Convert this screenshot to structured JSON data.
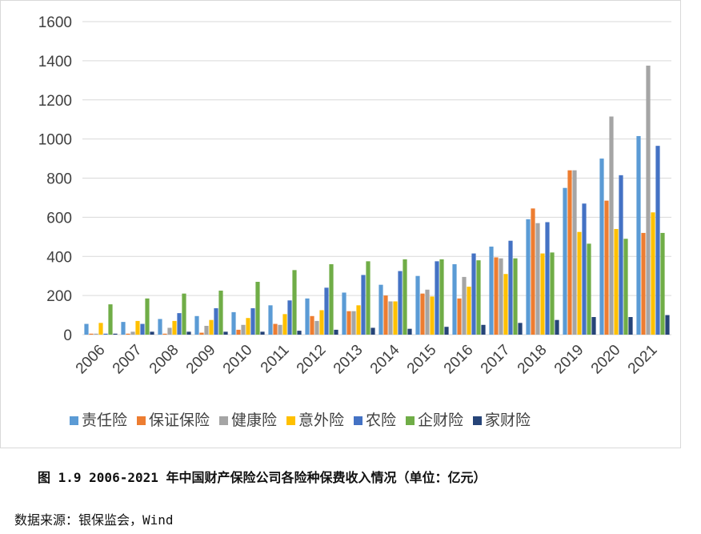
{
  "chart_data": {
    "type": "bar",
    "categories": [
      "2006",
      "2007",
      "2008",
      "2009",
      "2010",
      "2011",
      "2012",
      "2013",
      "2014",
      "2015",
      "2016",
      "2017",
      "2018",
      "2019",
      "2020",
      "2021"
    ],
    "yticks": [
      0,
      200,
      400,
      600,
      800,
      1000,
      1200,
      1400,
      1600
    ],
    "ylim": [
      0,
      1600
    ],
    "grid": true,
    "legend_position": "bottom",
    "series": [
      {
        "name": "责任险",
        "color": "#5B9BD5",
        "values": [
          55,
          65,
          80,
          95,
          115,
          150,
          185,
          215,
          255,
          300,
          360,
          450,
          590,
          750,
          900,
          1015
        ]
      },
      {
        "name": "保证保险",
        "color": "#ED7D31",
        "values": [
          5,
          5,
          5,
          10,
          25,
          55,
          95,
          120,
          200,
          210,
          185,
          395,
          645,
          840,
          685,
          520
        ]
      },
      {
        "name": "健康险",
        "color": "#A5A5A5",
        "values": [
          5,
          15,
          35,
          45,
          50,
          50,
          70,
          120,
          170,
          230,
          295,
          390,
          570,
          840,
          1115,
          1375
        ]
      },
      {
        "name": "意外险",
        "color": "#FFC000",
        "values": [
          60,
          70,
          70,
          75,
          85,
          105,
          125,
          150,
          170,
          195,
          245,
          310,
          415,
          525,
          540,
          625
        ]
      },
      {
        "name": "农险",
        "color": "#4472C4",
        "values": [
          5,
          55,
          110,
          135,
          135,
          175,
          240,
          305,
          325,
          375,
          415,
          480,
          575,
          670,
          815,
          965
        ]
      },
      {
        "name": "企财险",
        "color": "#70AD47",
        "values": [
          155,
          185,
          210,
          225,
          270,
          330,
          360,
          375,
          385,
          385,
          380,
          390,
          420,
          465,
          490,
          520
        ]
      },
      {
        "name": "家财险",
        "color": "#264478",
        "values": [
          5,
          15,
          15,
          15,
          15,
          20,
          25,
          35,
          30,
          40,
          50,
          60,
          75,
          90,
          90,
          100
        ]
      }
    ]
  },
  "caption": "图 1.9 2006-2021 年中国财产保险公司各险种保费收入情况（单位：亿元）",
  "source": "数据来源：银保监会，Wind"
}
